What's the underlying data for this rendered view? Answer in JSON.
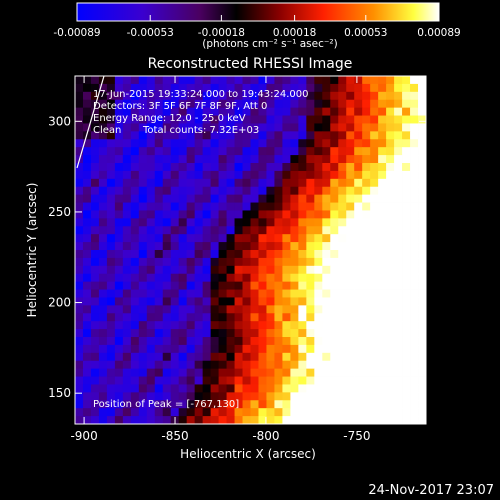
{
  "chart_data": {
    "type": "heatmap",
    "title": "Reconstructed RHESSI Image",
    "xlabel": "Heliocentric X (arcsec)",
    "ylabel": "Heliocentric Y (arcsec)",
    "xlim": [
      -905,
      -712
    ],
    "ylim": [
      133,
      325
    ],
    "x_ticks": [
      -900,
      -850,
      -800,
      -750
    ],
    "x_tick_labels": [
      "-900",
      "-850",
      "-800",
      "-750"
    ],
    "y_ticks": [
      150,
      200,
      250,
      300
    ],
    "y_tick_labels": [
      "150",
      "200",
      "250",
      "300"
    ],
    "colorbar": {
      "range": [
        -0.00089,
        0.00089
      ],
      "ticks": [
        -0.00089,
        -0.00053,
        -0.00018,
        0.00018,
        0.00053,
        0.00089
      ],
      "tick_labels": [
        "-0.00089",
        "-0.00053",
        "-0.00018",
        "0.00018",
        "0.00053",
        "0.00089"
      ],
      "unit_label": "(photons cm⁻² s⁻¹ asec⁻²)",
      "colormap": [
        "#0000ff",
        "#5a00a8",
        "#1a000a",
        "#c00000",
        "#ff4400",
        "#ffaa00",
        "#ffff66",
        "#ffffff"
      ]
    },
    "peak": [
      -767,
      130
    ],
    "grid": false
  },
  "annotations": {
    "time_range": "17-Jun-2015 19:33:24.000 to 19:43:24.000",
    "detectors": "Detectors: 3F 5F 6F 7F 8F 9F, Att 0",
    "energy_range": "Energy Range: 12.0 - 25.0 keV",
    "algorithm": "Clean",
    "total_counts": "Total counts: 7.32E+03",
    "peak_label": "Position of Peak = [-767,130]"
  },
  "footer": {
    "timestamp": "24-Nov-2017 23:07"
  }
}
